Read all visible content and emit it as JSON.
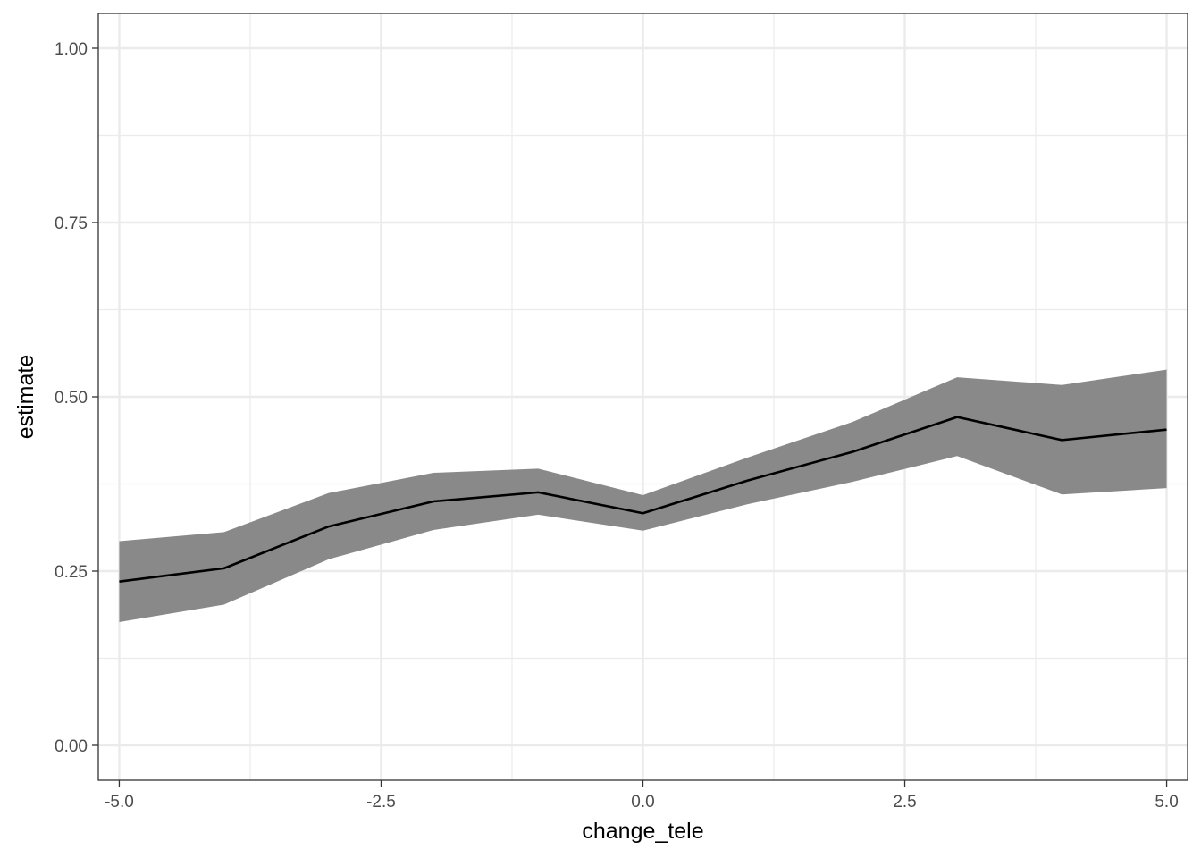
{
  "chart_data": {
    "type": "line",
    "title": "",
    "xlabel": "change_tele",
    "ylabel": "estimate",
    "xlim": [
      -5.2,
      5.2
    ],
    "ylim": [
      -0.05,
      1.05
    ],
    "x_ticks": [
      -5.0,
      -2.5,
      0.0,
      2.5,
      5.0
    ],
    "x_tick_labels": [
      "-5.0",
      "-2.5",
      "0.0",
      "2.5",
      "5.0"
    ],
    "x_minor_ticks": [
      -3.75,
      -1.25,
      1.25,
      3.75
    ],
    "y_ticks": [
      0.0,
      0.25,
      0.5,
      0.75,
      1.0
    ],
    "y_tick_labels": [
      "0.00",
      "0.25",
      "0.50",
      "0.75",
      "1.00"
    ],
    "y_minor_ticks": [
      0.125,
      0.375,
      0.625,
      0.875
    ],
    "grid": true,
    "series": [
      {
        "x": [
          -5,
          -4,
          -3,
          -2,
          -1,
          0,
          1,
          2,
          3,
          4,
          5
        ],
        "values": [
          0.235,
          0.254,
          0.314,
          0.35,
          0.363,
          0.333,
          0.38,
          0.421,
          0.471,
          0.438,
          0.453
        ],
        "lower": [
          0.177,
          0.202,
          0.267,
          0.309,
          0.331,
          0.308,
          0.346,
          0.378,
          0.415,
          0.36,
          0.369
        ],
        "upper": [
          0.293,
          0.306,
          0.362,
          0.391,
          0.397,
          0.359,
          0.413,
          0.464,
          0.528,
          0.517,
          0.539
        ],
        "line_color": "#000000",
        "band_color": "#898989"
      }
    ]
  }
}
